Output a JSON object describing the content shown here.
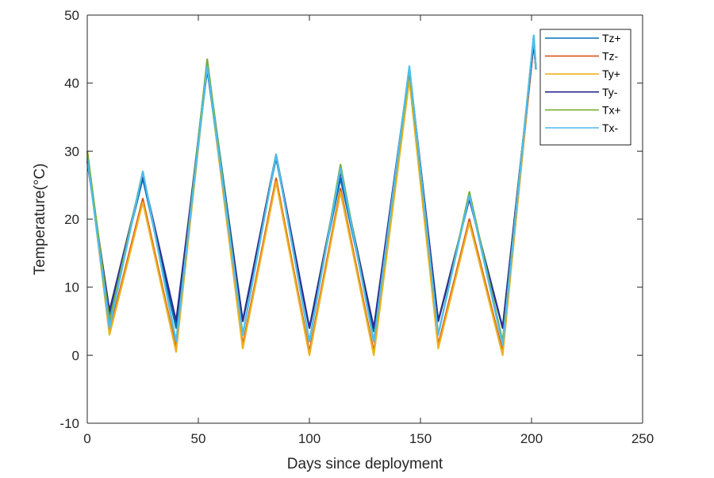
{
  "chart_data": {
    "type": "line",
    "title": "",
    "xlabel": "Days since deployment",
    "ylabel": "Temperature(°C)",
    "xlim": [
      0,
      250
    ],
    "ylim": [
      -10,
      50
    ],
    "x_ticks": [
      0,
      50,
      100,
      150,
      200,
      250
    ],
    "y_ticks": [
      -10,
      0,
      10,
      20,
      30,
      40,
      50
    ],
    "x_tick_labels": [
      "0",
      "50",
      "100",
      "150",
      "200",
      "250"
    ],
    "y_tick_labels": [
      "-10",
      "0",
      "10",
      "20",
      "30",
      "40",
      "50"
    ],
    "grid": false,
    "legend_position": "top-right",
    "series": [
      {
        "name": "Tz+",
        "color": "#0072BD",
        "x": [
          0,
          10,
          25,
          40,
          54,
          70,
          85,
          100,
          114,
          129,
          145,
          158,
          172,
          187,
          201,
          202
        ],
        "y": [
          29,
          6,
          26,
          4,
          43,
          5,
          29,
          4,
          26,
          3.5,
          42,
          5,
          23,
          4,
          46,
          42
        ]
      },
      {
        "name": "Tz-",
        "color": "#D95319",
        "x": [
          0,
          10,
          25,
          40,
          54,
          70,
          85,
          100,
          114,
          129,
          145,
          158,
          172,
          187,
          201,
          202
        ],
        "y": [
          30,
          3.5,
          23,
          1,
          43,
          1.5,
          26,
          0.5,
          24.5,
          0.5,
          41,
          1.5,
          20,
          0.5,
          46,
          42
        ]
      },
      {
        "name": "Ty+",
        "color": "#EDB120",
        "x": [
          0,
          10,
          25,
          40,
          54,
          70,
          85,
          100,
          114,
          129,
          145,
          158,
          172,
          187,
          201,
          202
        ],
        "y": [
          29.5,
          3,
          22.5,
          0.5,
          42.5,
          1,
          25.5,
          0,
          24,
          0,
          40.5,
          1,
          19.5,
          0,
          46.5,
          42
        ]
      },
      {
        "name": "Ty-",
        "color": "#2E2E8F",
        "x": [
          0,
          10,
          25,
          40,
          54,
          70,
          85,
          100,
          114,
          129,
          145,
          158,
          172,
          187,
          201,
          202
        ],
        "y": [
          28.5,
          6.5,
          26.5,
          5,
          42,
          5,
          29.5,
          4,
          27,
          4,
          42,
          5,
          23,
          4,
          46,
          42
        ]
      },
      {
        "name": "Tx+",
        "color": "#77AC30",
        "x": [
          0,
          10,
          25,
          40,
          54,
          70,
          85,
          100,
          114,
          129,
          145,
          158,
          172,
          187,
          201,
          202
        ],
        "y": [
          30,
          5,
          27,
          2,
          43.5,
          3,
          29.5,
          2,
          28,
          2,
          42,
          3,
          24,
          2,
          47,
          42
        ]
      },
      {
        "name": "Tx-",
        "color": "#4DBEEE",
        "x": [
          0,
          10,
          25,
          40,
          54,
          70,
          85,
          100,
          114,
          129,
          145,
          158,
          172,
          187,
          201,
          202
        ],
        "y": [
          29,
          4,
          27,
          2,
          42.5,
          3,
          29.5,
          2,
          27.5,
          2,
          42.5,
          3,
          23.5,
          1.5,
          47,
          42
        ]
      }
    ]
  }
}
